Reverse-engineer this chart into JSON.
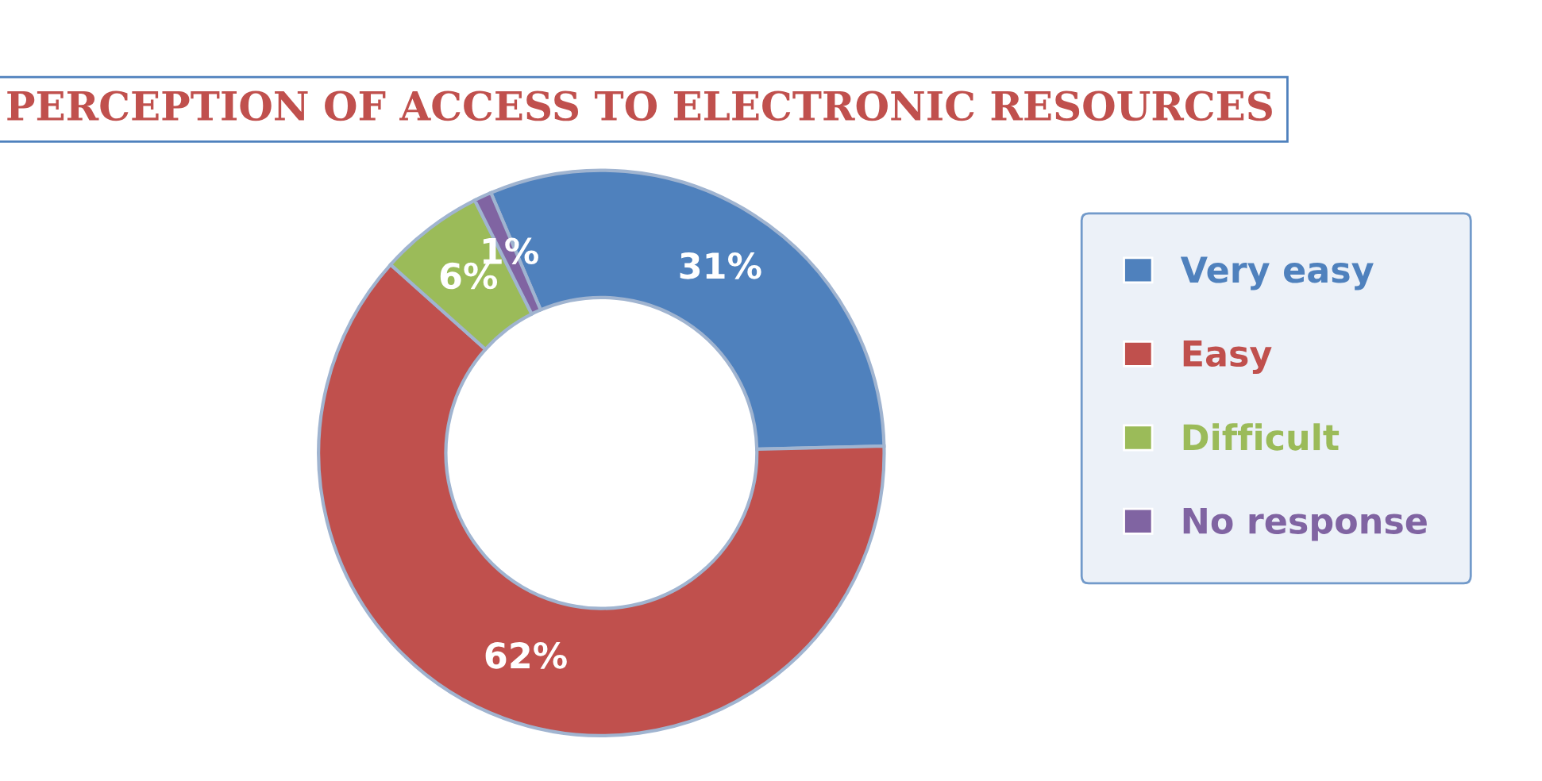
{
  "chart_data": {
    "type": "donut",
    "title": "PERCEPTION OF ACCESS TO ELECTRONIC RESOURCES",
    "categories": [
      "Very easy",
      "Easy",
      "Difficult",
      "No response"
    ],
    "values": [
      31,
      62,
      6,
      1
    ],
    "colors": [
      "#4f81bd",
      "#c0504d",
      "#9bbb59",
      "#8064a2"
    ],
    "value_labels": [
      "31%",
      "62%",
      "6%",
      "1%"
    ],
    "legend": "right"
  }
}
